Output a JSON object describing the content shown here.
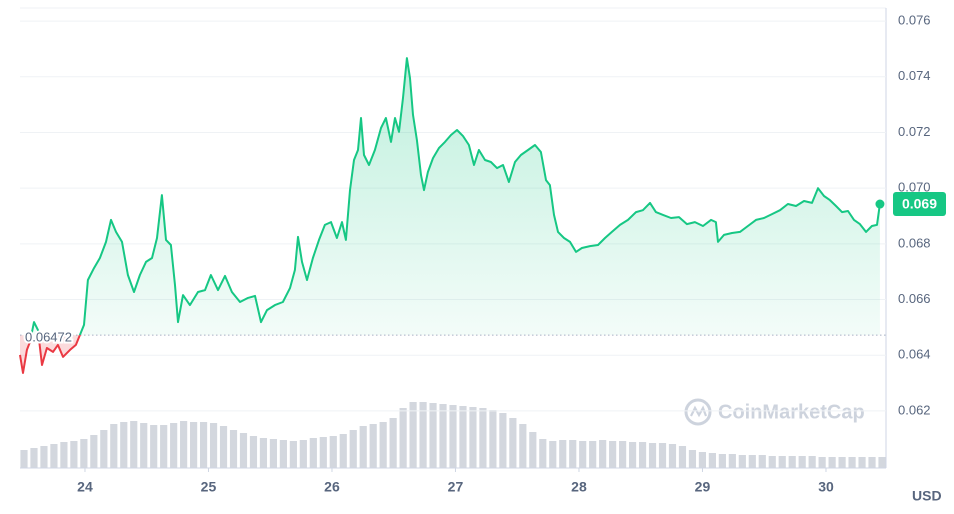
{
  "chart_data": {
    "type": "line",
    "currency_label": "USD",
    "watermark": "CoinMarketCap",
    "baseline": 0.06472,
    "last_label": "0.069",
    "grid": true,
    "xlim": [
      23.474,
      30.486
    ],
    "xticks": [
      24,
      25,
      26,
      27,
      28,
      29,
      30
    ],
    "ylim": [
      0.05995,
      0.07647
    ],
    "yticks": [
      0.062,
      0.064,
      0.066,
      0.068,
      {
        "value": 0.07,
        "label": "0.070"
      },
      0.072,
      0.074,
      0.076
    ],
    "y2lim": [
      0,
      460
    ],
    "series": [
      {
        "type": "line",
        "color": "#16c784",
        "down_color": "#ea3943",
        "x": [
          23.474,
          23.498,
          23.53,
          23.555,
          23.587,
          23.619,
          23.652,
          23.692,
          23.741,
          23.781,
          23.822,
          23.879,
          23.927,
          23.992,
          24.024,
          24.073,
          24.121,
          24.17,
          24.211,
          24.251,
          24.3,
          24.348,
          24.397,
          24.445,
          24.494,
          24.543,
          24.583,
          24.623,
          24.656,
          24.696,
          24.729,
          24.753,
          24.794,
          24.85,
          24.915,
          24.972,
          25.02,
          25.077,
          25.134,
          25.19,
          25.255,
          25.32,
          25.377,
          25.425,
          25.474,
          25.538,
          25.603,
          25.66,
          25.7,
          25.725,
          25.757,
          25.798,
          25.846,
          25.895,
          25.943,
          25.992,
          26.04,
          26.081,
          26.113,
          26.146,
          26.178,
          26.211,
          26.235,
          26.259,
          26.3,
          26.348,
          26.397,
          26.437,
          26.478,
          26.51,
          26.543,
          26.575,
          26.607,
          26.632,
          26.656,
          26.688,
          26.721,
          26.745,
          26.777,
          26.818,
          26.866,
          26.915,
          26.964,
          27.012,
          27.061,
          27.109,
          27.15,
          27.19,
          27.239,
          27.287,
          27.336,
          27.385,
          27.433,
          27.482,
          27.53,
          27.587,
          27.644,
          27.692,
          27.733,
          27.765,
          27.798,
          27.83,
          27.879,
          27.927,
          27.976,
          28.024,
          28.089,
          28.154,
          28.211,
          28.267,
          28.332,
          28.397,
          28.462,
          28.518,
          28.575,
          28.623,
          28.68,
          28.745,
          28.81,
          28.874,
          28.939,
          29.004,
          29.069,
          29.109,
          29.126,
          29.174,
          29.239,
          29.304,
          29.368,
          29.433,
          29.498,
          29.563,
          29.628,
          29.692,
          29.757,
          29.822,
          29.887,
          29.935,
          29.984,
          30.032,
          30.081,
          30.13,
          30.178,
          30.227,
          30.275,
          30.324,
          30.372,
          30.413,
          30.437
        ],
        "values": [
          0.06401,
          0.06336,
          0.06419,
          0.06448,
          0.06519,
          0.06491,
          0.06365,
          0.06426,
          0.06412,
          0.06437,
          0.06394,
          0.06419,
          0.06437,
          0.06509,
          0.0667,
          0.06713,
          0.06749,
          0.06807,
          0.06886,
          0.06843,
          0.06807,
          0.06688,
          0.06627,
          0.06688,
          0.06735,
          0.06749,
          0.06821,
          0.06975,
          0.06814,
          0.06796,
          0.06652,
          0.06519,
          0.06616,
          0.0658,
          0.06627,
          0.06634,
          0.06688,
          0.06634,
          0.06685,
          0.06627,
          0.06591,
          0.06606,
          0.06613,
          0.06519,
          0.06562,
          0.0658,
          0.06591,
          0.06641,
          0.06706,
          0.06825,
          0.06735,
          0.0667,
          0.06749,
          0.06814,
          0.06868,
          0.06878,
          0.06821,
          0.06878,
          0.06814,
          0.06993,
          0.07101,
          0.07137,
          0.07252,
          0.07119,
          0.07083,
          0.07137,
          0.07216,
          0.07252,
          0.07166,
          0.07252,
          0.07202,
          0.07324,
          0.07467,
          0.07395,
          0.07263,
          0.07173,
          0.07047,
          0.06993,
          0.07058,
          0.07108,
          0.07144,
          0.07166,
          0.07191,
          0.07209,
          0.07187,
          0.07155,
          0.07083,
          0.07137,
          0.07101,
          0.07094,
          0.07072,
          0.07083,
          0.07022,
          0.07094,
          0.07119,
          0.07137,
          0.07155,
          0.0713,
          0.07029,
          0.07011,
          0.06904,
          0.06843,
          0.06821,
          0.06807,
          0.06771,
          0.06785,
          0.06792,
          0.06796,
          0.06821,
          0.06843,
          0.06868,
          0.06886,
          0.06914,
          0.06921,
          0.06947,
          0.06914,
          0.06904,
          0.06893,
          0.06896,
          0.06871,
          0.06878,
          0.06864,
          0.06886,
          0.06878,
          0.06807,
          0.06832,
          0.06839,
          0.06843,
          0.06864,
          0.06886,
          0.06893,
          0.06907,
          0.06921,
          0.06943,
          0.06936,
          0.06954,
          0.06947,
          0.07,
          0.06972,
          0.06957,
          0.06936,
          0.06914,
          0.06918,
          0.06886,
          0.06871,
          0.06843,
          0.06864,
          0.06868,
          0.06943
        ]
      },
      {
        "type": "bar",
        "axis": "y2",
        "color": "#d3d7de",
        "values": [
          18,
          20,
          22,
          24,
          26,
          27,
          29,
          33,
          38,
          44,
          46,
          47,
          45,
          43,
          43,
          45,
          47,
          46,
          46,
          45,
          42,
          38,
          35,
          32,
          30,
          29,
          28,
          27,
          28,
          30,
          31,
          32,
          34,
          38,
          42,
          44,
          46,
          50,
          60,
          66,
          66,
          65,
          64,
          63,
          62,
          61,
          60,
          58,
          55,
          50,
          44,
          36,
          29,
          27,
          28,
          28,
          27,
          27,
          28,
          27,
          27,
          26,
          26,
          25,
          25,
          24,
          22,
          18,
          16,
          15,
          14,
          14,
          13,
          13,
          13,
          12,
          12,
          12,
          12,
          12,
          11,
          11,
          11,
          11,
          11,
          11,
          11
        ]
      }
    ]
  }
}
